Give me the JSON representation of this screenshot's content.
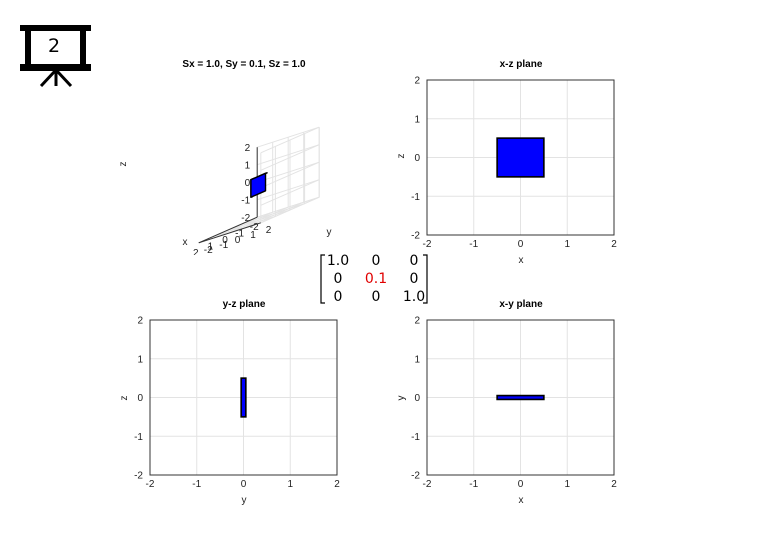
{
  "slide_badge": {
    "number": "2",
    "icon": "presentation-board-icon"
  },
  "matrix": {
    "rows": [
      [
        "1.0",
        "0",
        "0"
      ],
      [
        "0",
        "0.1",
        "0"
      ],
      [
        "0",
        "0",
        "1.0"
      ]
    ],
    "highlight_color": "#e00000",
    "highlight_cell": [
      1,
      1
    ]
  },
  "chart_data": [
    {
      "type": "3d-surface",
      "title": "Sx = 1.0, Sy = 0.1, Sz = 1.0",
      "xlabel": "x",
      "ylabel": "y",
      "zlabel": "z",
      "xlim": [
        -2,
        2
      ],
      "ylim": [
        -2,
        2
      ],
      "zlim": [
        -2,
        2
      ],
      "xticks": [
        "-2",
        "-1",
        "0",
        "1",
        "2"
      ],
      "yticks": [
        "-2",
        "-1",
        "0",
        "1",
        "2"
      ],
      "zticks": [
        "-2",
        "-1",
        "0",
        "1",
        "2"
      ],
      "grid": true,
      "box": {
        "x": [
          -0.5,
          0.5
        ],
        "y": [
          -0.05,
          0.05
        ],
        "z": [
          -0.5,
          0.5
        ]
      },
      "face_color": "#0000ff"
    },
    {
      "type": "area",
      "title": "x-z plane",
      "xlabel": "x",
      "ylabel": "z",
      "xlim": [
        -2,
        2
      ],
      "ylim": [
        -2,
        2
      ],
      "xticks": [
        "-2",
        "-1",
        "0",
        "1",
        "2"
      ],
      "yticks": [
        "-2",
        "-1",
        "0",
        "1",
        "2"
      ],
      "grid": true,
      "rect": {
        "x": [
          -0.5,
          0.5
        ],
        "y": [
          -0.5,
          0.5
        ]
      },
      "face_color": "#0000ff"
    },
    {
      "type": "area",
      "title": "y-z plane",
      "xlabel": "y",
      "ylabel": "z",
      "xlim": [
        -2,
        2
      ],
      "ylim": [
        -2,
        2
      ],
      "xticks": [
        "-2",
        "-1",
        "0",
        "1",
        "2"
      ],
      "yticks": [
        "-2",
        "-1",
        "0",
        "1",
        "2"
      ],
      "grid": true,
      "rect": {
        "x": [
          -0.05,
          0.05
        ],
        "y": [
          -0.5,
          0.5
        ]
      },
      "face_color": "#0000ff"
    },
    {
      "type": "area",
      "title": "x-y plane",
      "xlabel": "x",
      "ylabel": "y",
      "xlim": [
        -2,
        2
      ],
      "ylim": [
        -2,
        2
      ],
      "xticks": [
        "-2",
        "-1",
        "0",
        "1",
        "2"
      ],
      "yticks": [
        "-2",
        "-1",
        "0",
        "1",
        "2"
      ],
      "grid": true,
      "rect": {
        "x": [
          -0.5,
          0.5
        ],
        "y": [
          -0.05,
          0.05
        ]
      },
      "face_color": "#0000ff"
    }
  ]
}
